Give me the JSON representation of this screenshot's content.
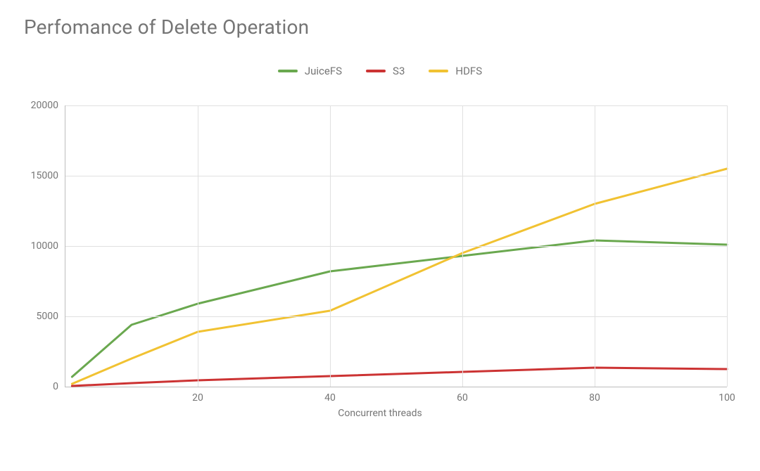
{
  "title": "Perfomance of Delete Operation",
  "x_axis": {
    "title": "Concurrent threads",
    "min": 0,
    "max": 100,
    "ticks": [
      20,
      40,
      60,
      80,
      100
    ],
    "tick_labels": [
      "20",
      "40",
      "60",
      "80",
      "100"
    ]
  },
  "y_axis": {
    "min": 0,
    "max": 20000,
    "ticks": [
      0,
      5000,
      10000,
      15000,
      20000
    ],
    "tick_labels": [
      "0",
      "5000",
      "10000",
      "15000",
      "20000"
    ]
  },
  "colors": {
    "background": "#ffffff",
    "grid": "#e0e0e0",
    "axis": "#bdbdbd",
    "text": "#757575"
  },
  "series": [
    {
      "name": "JuiceFS",
      "color": "#6aa84f",
      "x": [
        1,
        10,
        20,
        40,
        60,
        80,
        100
      ],
      "y": [
        700,
        4400,
        5900,
        8200,
        9300,
        10400,
        10100
      ]
    },
    {
      "name": "S3",
      "color": "#cc3333",
      "x": [
        1,
        10,
        20,
        40,
        60,
        80,
        100
      ],
      "y": [
        50,
        250,
        450,
        750,
        1050,
        1350,
        1250
      ]
    },
    {
      "name": "HDFS",
      "color": "#f1c232",
      "x": [
        1,
        10,
        20,
        40,
        60,
        80,
        100
      ],
      "y": [
        200,
        2000,
        3900,
        5400,
        9500,
        13000,
        15500
      ]
    }
  ],
  "line_width": 3,
  "title_fontsize": 28,
  "label_fontsize": 14,
  "legend_fontsize": 15
}
